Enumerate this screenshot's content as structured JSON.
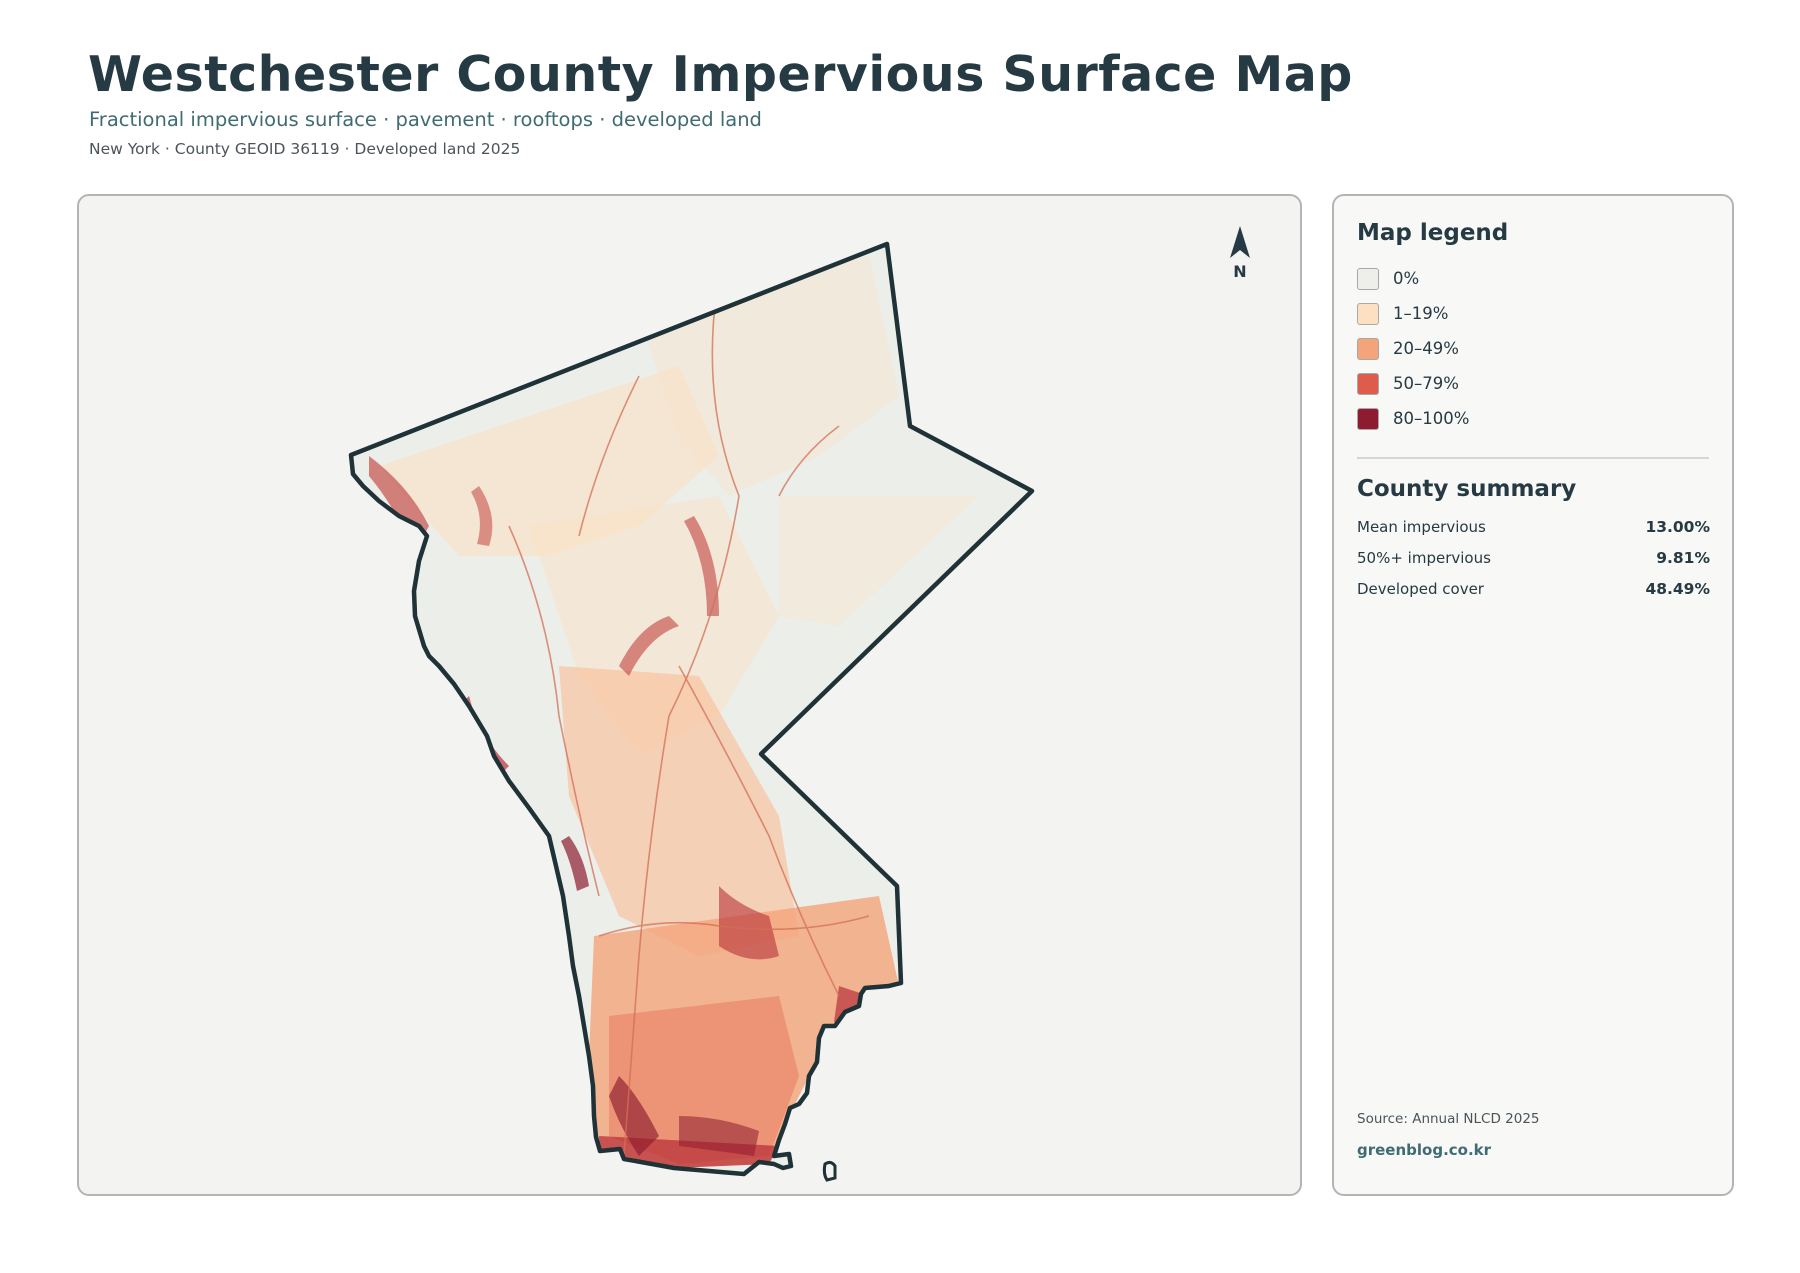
{
  "header": {
    "title": "Westchester County Impervious Surface Map",
    "subtitle": "Fractional impervious surface · pavement · rooftops · developed land",
    "meta": "New York · County GEOID 36119 · Developed land 2025"
  },
  "map": {
    "north_label": "N",
    "outline_color": "#1f3238",
    "background_color": "#f3f3f1"
  },
  "legend": {
    "title": "Map legend",
    "items": [
      {
        "label": "0%",
        "color": "#eeeeea"
      },
      {
        "label": "1–19%",
        "color": "#fde0c2"
      },
      {
        "label": "20–49%",
        "color": "#f4a47a"
      },
      {
        "label": "50–79%",
        "color": "#dd5c4c"
      },
      {
        "label": "80–100%",
        "color": "#8e1c30"
      }
    ]
  },
  "summary": {
    "title": "County summary",
    "stats": [
      {
        "label": "Mean impervious",
        "value": "13.00%"
      },
      {
        "label": "50%+ impervious",
        "value": "9.81%"
      },
      {
        "label": "Developed cover",
        "value": "48.49%"
      }
    ]
  },
  "footer": {
    "source": "Source: Annual NLCD 2025",
    "site": "greenblog.co.kr"
  }
}
